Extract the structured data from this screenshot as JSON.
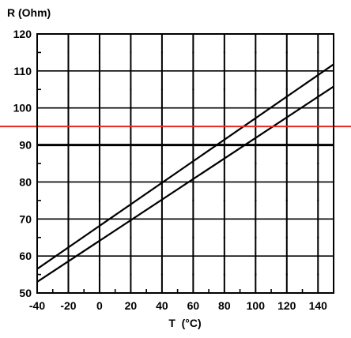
{
  "chart_data": {
    "type": "line",
    "xlabel": "T  (°C)",
    "ylabel": "R (Ohm)",
    "xlim": [
      -40,
      150
    ],
    "ylim": [
      50,
      120
    ],
    "x_ticks": [
      -40,
      -20,
      0,
      20,
      40,
      60,
      80,
      100,
      120,
      140
    ],
    "y_ticks": [
      50,
      60,
      70,
      80,
      90,
      100,
      110,
      120
    ],
    "x_grid": [
      -20,
      0,
      20,
      40,
      60,
      80,
      100,
      120,
      140
    ],
    "y_grid": [
      60,
      70,
      80,
      90,
      100,
      110
    ],
    "grid": true,
    "series": [
      {
        "x": [
          -40,
          150
        ],
        "y": [
          56.5,
          111.8
        ]
      },
      {
        "x": [
          -40,
          150
        ],
        "y": [
          53.0,
          105.8
        ]
      }
    ],
    "reference_lines": [
      {
        "orientation": "horizontal",
        "y": 90,
        "color": "#000000"
      },
      {
        "orientation": "horizontal",
        "y": 95,
        "color": "#e8281e"
      }
    ],
    "colors": {
      "series": "#000000",
      "grid": "#000000",
      "threshold": "#e8281e"
    }
  }
}
